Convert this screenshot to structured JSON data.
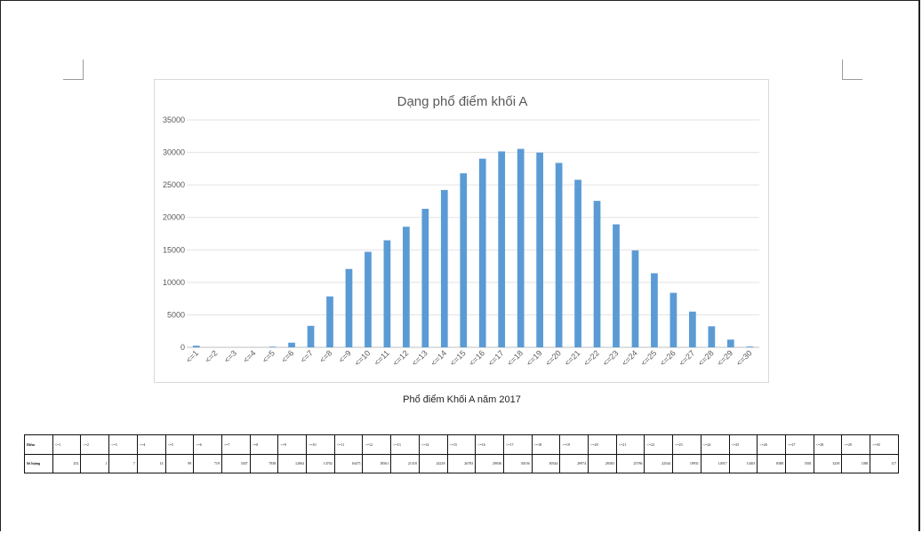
{
  "caption": "Phổ điểm Khối A năm 2017",
  "table": {
    "row_labels": [
      "Điểm",
      "Số lượng"
    ],
    "headers": [
      "<=1",
      "<=2",
      "<=3",
      "<=4",
      "<=5",
      "<=6",
      "<=7",
      "<=8",
      "<=9",
      "<=10",
      "<=11",
      "<=12",
      "<=13",
      "<=14",
      "<=15",
      "<=16",
      "<=17",
      "<=18",
      "<=19",
      "<=20",
      "<=21",
      "<=22",
      "<=23",
      "<=24",
      "<=25",
      "<=26",
      "<=27",
      "<=28",
      "<=29",
      "<=30"
    ],
    "values": [
      "252",
      "1",
      "7",
      "14",
      "99",
      "719",
      "3307",
      "7838",
      "12064",
      "14702",
      "16475",
      "18561",
      "21318",
      "24218",
      "26783",
      "29036",
      "30156",
      "30544",
      "29974",
      "28383",
      "25786",
      "22544",
      "18931",
      "14917",
      "11403",
      "8388",
      "5501",
      "3239",
      "1188",
      "117"
    ]
  },
  "chart_data": {
    "type": "bar",
    "title": "Dạng phổ điểm khối A",
    "xlabel": "",
    "ylabel": "",
    "ylim": [
      0,
      35000
    ],
    "yticks": [
      "0",
      "5000",
      "10000",
      "15000",
      "20000",
      "25000",
      "30000",
      "35000"
    ],
    "grid": true,
    "bar_color": "#5b9bd5",
    "categories": [
      "<=1",
      "<=2",
      "<=3",
      "<=4",
      "<=5",
      "<=6",
      "<=7",
      "<=8",
      "<=9",
      "<=10",
      "<=11",
      "<=12",
      "<=13",
      "<=14",
      "<=15",
      "<=16",
      "<=17",
      "<=18",
      "<=19",
      "<=20",
      "<=21",
      "<=22",
      "<=23",
      "<=24",
      "<=25",
      "<=26",
      "<=27",
      "<=28",
      "<=29",
      "<=30"
    ],
    "values": [
      252,
      1,
      7,
      14,
      99,
      719,
      3307,
      7838,
      12064,
      14702,
      16475,
      18561,
      21318,
      24218,
      26783,
      29036,
      30156,
      30544,
      29974,
      28383,
      25786,
      22544,
      18931,
      14917,
      11403,
      8388,
      5501,
      3239,
      1188,
      117
    ]
  }
}
